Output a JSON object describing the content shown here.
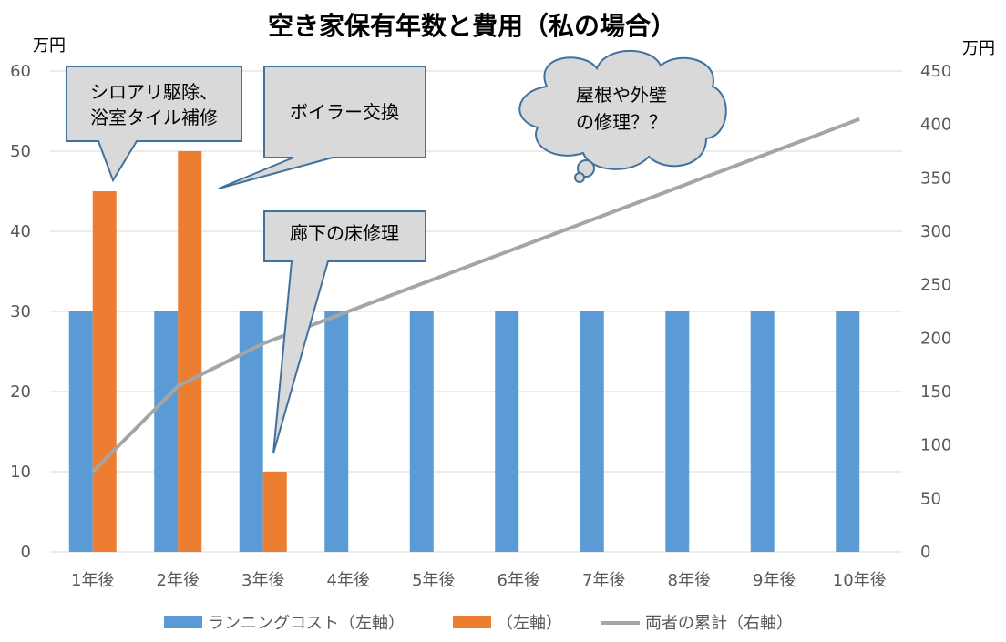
{
  "chart_data": {
    "type": "bar",
    "title": "空き家保有年数と費用（私の場合）",
    "y_unit_left": "万円",
    "y_unit_right": "万円",
    "categories": [
      "1年後",
      "2年後",
      "3年後",
      "4年後",
      "5年後",
      "6年後",
      "7年後",
      "8年後",
      "9年後",
      "10年後"
    ],
    "ylim_left": [
      0,
      60
    ],
    "yticks_left": [
      0,
      10,
      20,
      30,
      40,
      50,
      60
    ],
    "ylim_right": [
      0,
      450
    ],
    "yticks_right": [
      0,
      50,
      100,
      150,
      200,
      250,
      300,
      350,
      400,
      450
    ],
    "grid": true,
    "legend_position": "bottom",
    "series": [
      {
        "name": "ランニングコスト（左軸）",
        "type": "bar",
        "axis": "left",
        "color": "#5b9bd5",
        "values": [
          30,
          30,
          30,
          30,
          30,
          30,
          30,
          30,
          30,
          30
        ]
      },
      {
        "name": "（左軸）",
        "type": "bar",
        "axis": "left",
        "color": "#ed7d31",
        "values": [
          45,
          50,
          10,
          null,
          null,
          null,
          null,
          null,
          null,
          null
        ]
      },
      {
        "name": "両者の累計（右軸）",
        "type": "line",
        "axis": "right",
        "color": "#a5a5a5",
        "values": [
          75,
          155,
          195,
          225,
          255,
          285,
          315,
          345,
          375,
          405
        ]
      }
    ],
    "annotations": [
      {
        "id": "c1",
        "lines": [
          "シロアリ駆除、",
          "浴室タイル補修"
        ]
      },
      {
        "id": "c2",
        "lines": [
          "ボイラー交換"
        ]
      },
      {
        "id": "c3",
        "lines": [
          "廊下の床修理"
        ]
      },
      {
        "id": "c4",
        "lines": [
          "屋根や外壁",
          "の修理？？"
        ]
      }
    ]
  }
}
